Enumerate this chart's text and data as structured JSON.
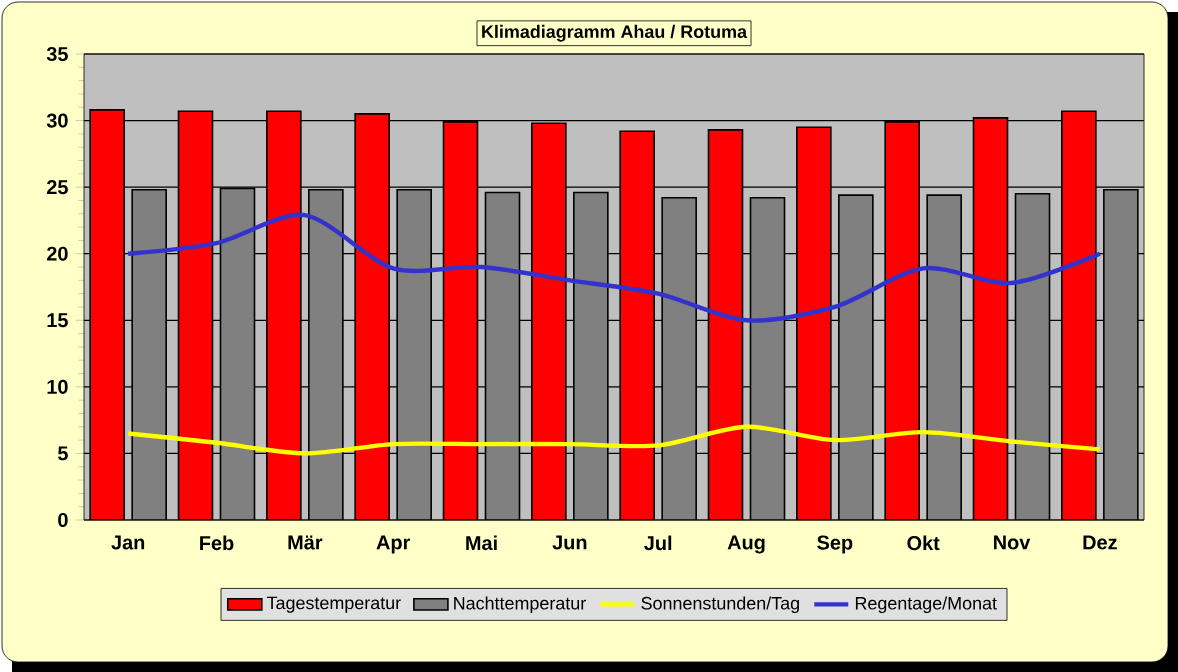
{
  "chart_data": {
    "type": "bar",
    "title": "Klimadiagramm Ahau / Rotuma",
    "categories": [
      "Jan",
      "Feb",
      "Mär",
      "Apr",
      "Mai",
      "Jun",
      "Jul",
      "Aug",
      "Sep",
      "Okt",
      "Nov",
      "Dez"
    ],
    "series": [
      {
        "name": "Tagestemperatur",
        "color": "#ff0000",
        "values": [
          30.8,
          30.7,
          30.7,
          30.5,
          29.9,
          29.8,
          29.2,
          29.3,
          29.5,
          29.9,
          30.2,
          30.7
        ]
      },
      {
        "name": "Nachttemperatur",
        "color": "#808080",
        "values": [
          24.8,
          24.9,
          24.8,
          24.8,
          24.6,
          24.6,
          24.2,
          24.2,
          24.4,
          24.4,
          24.5,
          24.8
        ]
      },
      {
        "name": "Sonnenstunden/Tag",
        "type": "line",
        "color": "#ffff00",
        "values": [
          6.5,
          5.8,
          5.0,
          5.7,
          5.7,
          5.7,
          5.6,
          7.0,
          6.0,
          6.6,
          5.9,
          5.3
        ]
      },
      {
        "name": "Regentage/Monat",
        "type": "line",
        "color": "#3333cc",
        "values": [
          20.0,
          20.8,
          22.9,
          18.9,
          19.0,
          18.0,
          17.0,
          15.0,
          16.0,
          18.9,
          17.8,
          20.0
        ]
      }
    ],
    "ylim": [
      0,
      35
    ],
    "yticks": [
      0,
      5,
      10,
      15,
      20,
      25,
      30,
      35
    ],
    "grid": "y",
    "legend": "bottom"
  }
}
